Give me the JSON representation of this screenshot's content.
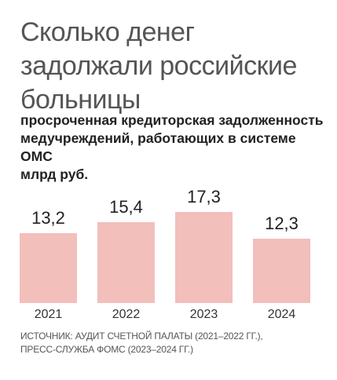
{
  "chart_data": {
    "type": "bar",
    "title": "Сколько денег задолжали российские больницы",
    "subtitle": "просроченная кредиторская задолженность медучреждений, работающих в системе ОМС",
    "unit": "млрд руб.",
    "categories": [
      "2021",
      "2022",
      "2023",
      "2024"
    ],
    "values": [
      13.2,
      15.4,
      17.3,
      12.3
    ],
    "value_labels": [
      "13,2",
      "15,4",
      "17,3",
      "12,3"
    ],
    "ylim": [
      0,
      17.3
    ],
    "bar_color": "#f2bfbb",
    "grid": false,
    "legend": "none"
  },
  "source": {
    "line1": "ИСТОЧНИК: АУДИТ СЧЕТНОЙ ПАЛАТЫ (2021–2022 ГГ.),",
    "line2": "ПРЕСС-СЛУЖБА ФОМС (2023–2024 ГГ.)"
  }
}
